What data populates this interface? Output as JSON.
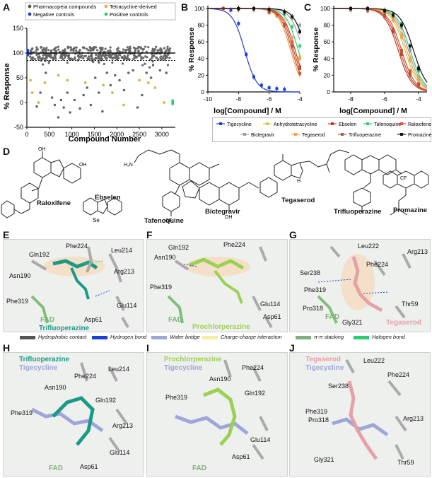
{
  "panel_letters": [
    "A",
    "B",
    "C",
    "D",
    "E",
    "F",
    "G",
    "H",
    "I",
    "J"
  ],
  "chart_data": [
    {
      "type": "scatter",
      "panel": "A",
      "xlabel": "Compound Number",
      "ylabel": "% Response",
      "xlim": [
        0,
        3300
      ],
      "ylim": [
        -50,
        150
      ],
      "xticks": [
        0,
        500,
        1000,
        1500,
        2000,
        2500,
        3000
      ],
      "yticks": [
        -50,
        0,
        50,
        100,
        150
      ],
      "mean_line": 100,
      "threshold_line": 85,
      "legend": [
        {
          "label": "Pharmacopeia compounds",
          "color": "#555555"
        },
        {
          "label": "Tetracycline-derived",
          "color": "#d9b24a"
        },
        {
          "label": "Negative controls",
          "color": "#1f3fd1"
        },
        {
          "label": "Positive controls",
          "color": "#2ecc71"
        }
      ],
      "negative_controls": {
        "x": 20,
        "y_range": [
          96,
          106
        ]
      },
      "positive_controls": {
        "x": 3240,
        "y_range": [
          -3,
          5
        ]
      },
      "tetracycline_points": [
        [
          80,
          45
        ],
        [
          120,
          20
        ],
        [
          260,
          0
        ],
        [
          400,
          40
        ],
        [
          700,
          55
        ],
        [
          900,
          45
        ],
        [
          1300,
          40
        ],
        [
          1700,
          35
        ],
        [
          1900,
          20
        ],
        [
          2150,
          -5
        ],
        [
          2700,
          40
        ],
        [
          2850,
          30
        ],
        [
          3050,
          0
        ],
        [
          2500,
          45
        ]
      ],
      "low_gray_points": [
        [
          220,
          -8
        ],
        [
          300,
          20
        ],
        [
          420,
          60
        ],
        [
          560,
          10
        ],
        [
          620,
          -5
        ],
        [
          700,
          -30
        ],
        [
          760,
          5
        ],
        [
          820,
          -10
        ],
        [
          900,
          20
        ],
        [
          960,
          -20
        ],
        [
          1060,
          5
        ],
        [
          1180,
          -12
        ],
        [
          1260,
          15
        ],
        [
          1340,
          30
        ],
        [
          1420,
          -5
        ],
        [
          1520,
          50
        ],
        [
          1600,
          20
        ],
        [
          1680,
          -18
        ],
        [
          1780,
          60
        ],
        [
          1860,
          35
        ],
        [
          1960,
          55
        ],
        [
          2060,
          45
        ],
        [
          2160,
          25
        ],
        [
          2260,
          60
        ],
        [
          2360,
          65
        ],
        [
          2460,
          -10
        ],
        [
          2560,
          15
        ],
        [
          2660,
          60
        ],
        [
          2760,
          50
        ],
        [
          2960,
          65
        ],
        [
          3100,
          60
        ]
      ]
    },
    {
      "type": "line",
      "panel": "B",
      "xlabel": "log[Compound] / M",
      "ylabel": "% Response",
      "xlim": [
        -10,
        -4
      ],
      "ylim": [
        0,
        100
      ],
      "xticks": [
        -10,
        -8,
        -6,
        -4
      ],
      "yticks": [
        0,
        20,
        40,
        60,
        80,
        100
      ],
      "series": [
        {
          "name": "Tigecycline",
          "color": "#1f3fd1",
          "logIC50": -7.6,
          "x": [
            -9,
            -8.5,
            -8,
            -7.5,
            -7,
            -6.5,
            -6,
            -5.5,
            -5
          ],
          "y": [
            100,
            98,
            82,
            45,
            18,
            8,
            5,
            4,
            3
          ]
        },
        {
          "name": "Anhydrotetracycline",
          "color": "#c8c84b",
          "logIC50": -4.4,
          "x": [
            -9,
            -8,
            -7,
            -6,
            -5.5,
            -5,
            -4.5,
            -4
          ],
          "y": [
            100,
            99,
            99,
            98,
            92,
            82,
            60,
            42
          ]
        },
        {
          "name": "Ebselen",
          "color": "#c0392b",
          "logIC50": -4.3,
          "x": [
            -9,
            -8,
            -7,
            -6,
            -5.5,
            -5,
            -4.5,
            -4
          ],
          "y": [
            100,
            99,
            99,
            97,
            92,
            80,
            55,
            30
          ]
        },
        {
          "name": "Tafenoquine",
          "color": "#2ecc71",
          "logIC50": -4.1,
          "x": [
            -8,
            -7,
            -6,
            -5,
            -4.5,
            -4
          ],
          "y": [
            100,
            100,
            98,
            93,
            78,
            55
          ]
        },
        {
          "name": "Raloxifene",
          "color": "#e74c3c",
          "logIC50": -4.4,
          "x": [
            -8,
            -7,
            -6,
            -5,
            -4.5,
            -4
          ],
          "y": [
            100,
            99,
            95,
            82,
            60,
            22
          ]
        },
        {
          "name": "Bictegravir",
          "color": "#9e9e9e",
          "logIC50": -3.8,
          "x": [
            -8,
            -7,
            -6,
            -5,
            -4.5,
            -4
          ],
          "y": [
            100,
            100,
            99,
            96,
            90,
            80
          ]
        },
        {
          "name": "Tegaserod",
          "color": "#f0a24a",
          "logIC50": -4.6,
          "x": [
            -8,
            -7,
            -6,
            -5,
            -4.5,
            -4
          ],
          "y": [
            100,
            99,
            96,
            85,
            65,
            40
          ]
        },
        {
          "name": "Trifluoperazine",
          "color": "#b8543a",
          "logIC50": -4.5,
          "x": [
            -8,
            -7,
            -6,
            -5,
            -4.5,
            -4
          ],
          "y": [
            100,
            99,
            96,
            80,
            55,
            28
          ]
        },
        {
          "name": "Promazine",
          "color": "#111111",
          "logIC50": -3.6,
          "x": [
            -8,
            -7,
            -6,
            -5,
            -4.5,
            -4
          ],
          "y": [
            100,
            100,
            99,
            96,
            90,
            72
          ]
        }
      ]
    },
    {
      "type": "line",
      "panel": "C",
      "xlabel": "log[Compound] / M",
      "ylabel": "% Response",
      "xlim": [
        -9,
        -3.5
      ],
      "ylim": [
        0,
        100
      ],
      "xticks": [
        -8,
        -6,
        -4
      ],
      "yticks": [
        0,
        20,
        40,
        60,
        80,
        100
      ],
      "series": [
        {
          "name": "Anhydrotetracycline",
          "color": "#c8c84b",
          "logIC50": -4.8,
          "x": [
            -8,
            -7,
            -6,
            -5.5,
            -5,
            -4.5,
            -4
          ],
          "y": [
            100,
            99,
            96,
            88,
            65,
            38,
            18
          ]
        },
        {
          "name": "Ebselen",
          "color": "#c0392b",
          "logIC50": -5.2,
          "x": [
            -8,
            -7,
            -6,
            -5.5,
            -5,
            -4.5,
            -4
          ],
          "y": [
            100,
            98,
            90,
            72,
            45,
            20,
            8
          ]
        },
        {
          "name": "Tafenoquine",
          "color": "#2ecc71",
          "logIC50": -4.5,
          "x": [
            -8,
            -7,
            -6,
            -5.5,
            -5,
            -4.5,
            -4
          ],
          "y": [
            100,
            100,
            98,
            94,
            82,
            55,
            25
          ]
        },
        {
          "name": "Raloxifene",
          "color": "#e74c3c",
          "logIC50": -5.0,
          "x": [
            -8,
            -7,
            -6,
            -5.5,
            -5,
            -4.5,
            -4
          ],
          "y": [
            100,
            98,
            90,
            75,
            50,
            25,
            10
          ]
        },
        {
          "name": "Bictegravir",
          "color": "#9e9e9e",
          "logIC50": -4.6,
          "x": [
            -8,
            -7,
            -6,
            -5.5,
            -5,
            -4.5,
            -4
          ],
          "y": [
            98,
            97,
            95,
            90,
            78,
            50,
            30
          ]
        },
        {
          "name": "Tegaserod",
          "color": "#f0a24a",
          "logIC50": -4.7,
          "x": [
            -8,
            -7,
            -6,
            -5.5,
            -5,
            -4.5,
            -4
          ],
          "y": [
            100,
            99,
            95,
            86,
            68,
            40,
            15
          ]
        },
        {
          "name": "Trifluoperazine",
          "color": "#b8543a",
          "logIC50": -5.1,
          "x": [
            -8,
            -7,
            -6,
            -5.5,
            -5,
            -4.5,
            -4
          ],
          "y": [
            100,
            98,
            92,
            75,
            48,
            22,
            8
          ]
        },
        {
          "name": "Promazine",
          "color": "#111111",
          "logIC50": -4.3,
          "x": [
            -8,
            -7,
            -6,
            -5.5,
            -5,
            -4.5,
            -4
          ],
          "y": [
            100,
            100,
            97,
            92,
            80,
            55,
            28
          ]
        }
      ]
    }
  ],
  "legend_bc": [
    "Tigecycline",
    "Anhydrotetracycline",
    "Ebselen",
    "Tafenoquine",
    "Raloxifene",
    "Bictegravir",
    "Tegaserod",
    "Trifluoperazine",
    "Promazine"
  ],
  "structures": {
    "raloxifene": "Raloxifene",
    "ebselen": "Ebselen",
    "tafenoquine": "Tafenoquine",
    "bictegravir": "Bictegravir",
    "tegaserod": "Tegaserod",
    "trifluoperazine": "Trifluoperazine",
    "promazine": "Promazine",
    "atom_cf3": "CF",
    "atom_se": "Se",
    "atom_oh": "OH",
    "atom_h": "H",
    "atom_h2n": "H₂N"
  },
  "panel_E": {
    "ligand": "Trifluoperazine",
    "fad": "FAD",
    "residues": [
      "Phe224",
      "Leu214",
      "Gln192",
      "Asn190",
      "Arg213",
      "Phe319",
      "Glu114",
      "Asp61"
    ]
  },
  "panel_F": {
    "ligand": "Prochlorperazine",
    "fad": "FAD",
    "residues": [
      "Phe224",
      "Gln192",
      "Asn190",
      "Phe319",
      "Glu114",
      "Asp61"
    ]
  },
  "panel_G": {
    "ligand": "Tegaserod",
    "fad": "FAD",
    "residues": [
      "Leu222",
      "Phe224",
      "Arg213",
      "Ser238",
      "Phe319",
      "Pro318",
      "Thr59",
      "Gly321"
    ]
  },
  "interaction_legend": [
    "Hydrophobic contact",
    "Hydrogen bond",
    "Water bridge",
    "Charge-charge interaction",
    "π-π stacking",
    "Halogen bond"
  ],
  "panel_H": {
    "ligand": "Trifluoperazine",
    "reference": "Tigecycline",
    "fad": "FAD",
    "residues": [
      "Leu214",
      "Phe224",
      "Asn190",
      "Gln192",
      "Phe319",
      "Arg213",
      "Glu114",
      "Asp61"
    ]
  },
  "panel_I": {
    "ligand": "Prochlorperazine",
    "reference": "Tigecycline",
    "fad": "FAD",
    "residues": [
      "Asn190",
      "Phe224",
      "Phe319",
      "Gln192",
      "Glu114",
      "Asp61"
    ]
  },
  "panel_J": {
    "ligand": "Tegaserod",
    "reference": "Tigecycline",
    "fad": "FAD",
    "residues": [
      "Leu222",
      "Ser238",
      "Phe224",
      "Phe319",
      "Pro318",
      "Arg213",
      "Gly321",
      "Thr59"
    ]
  }
}
